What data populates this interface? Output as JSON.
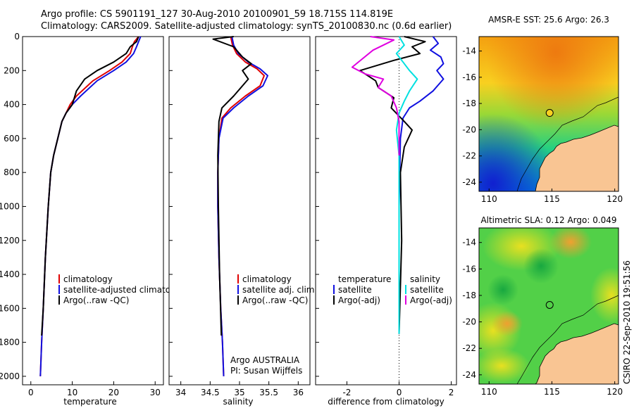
{
  "header": {
    "line1": "Argo profile: CS 5901191_127 30-Aug-2010 20100901_59 18.715S 114.819E",
    "line2": "Climatology: CARS2009. Satellite-adjusted climatology: synTS_20100830.nc (0.6d earlier)"
  },
  "colors": {
    "climatology": "#e00000",
    "satellite": "#1010e0",
    "argo": "#000000",
    "salinity_sat": "#00e0e0",
    "salinity_argo": "#e000e0",
    "land": "#f9c593"
  },
  "chart_data": [
    {
      "type": "line",
      "id": "temperature",
      "xlabel": "temperature",
      "xlim": [
        -2,
        32
      ],
      "ylim": [
        0,
        2050
      ],
      "xticks": [
        0,
        10,
        20,
        30
      ],
      "yticks": [
        0,
        200,
        400,
        600,
        800,
        1000,
        1200,
        1400,
        1600,
        1800,
        2000
      ],
      "y_inverted": true,
      "series": [
        {
          "name": "climatology",
          "color_key": "climatology",
          "x": [
            26,
            25,
            24.5,
            24,
            22,
            19,
            15,
            11,
            9.5,
            8.5,
            7.5,
            6.5,
            5.5,
            4.8,
            4.2,
            3.5,
            3,
            2.6,
            2.3
          ],
          "y": [
            0,
            30,
            60,
            100,
            150,
            200,
            260,
            350,
            400,
            450,
            500,
            600,
            700,
            800,
            1000,
            1300,
            1600,
            1800,
            2000
          ]
        },
        {
          "name": "satellite-adjusted climatology",
          "color_key": "satellite",
          "x": [
            26.5,
            26,
            25.5,
            24.8,
            23,
            20,
            16,
            12,
            10,
            8.5,
            7.5,
            6.5,
            5.5,
            4.8,
            4.2,
            3.5,
            3,
            2.6,
            2.3
          ],
          "y": [
            0,
            30,
            60,
            100,
            150,
            200,
            260,
            350,
            400,
            450,
            500,
            600,
            700,
            800,
            1000,
            1300,
            1600,
            1800,
            2000
          ]
        },
        {
          "name": "Argo(..raw -QC)",
          "color_key": "argo",
          "x": [
            26,
            25.5,
            24,
            23,
            20,
            16,
            13,
            11,
            10,
            8.5,
            7.5,
            6.5,
            5.5,
            4.8,
            4.2,
            3.5,
            3,
            2.6
          ],
          "y": [
            0,
            30,
            60,
            100,
            150,
            200,
            250,
            320,
            400,
            450,
            500,
            600,
            700,
            800,
            1000,
            1300,
            1600,
            1760
          ]
        }
      ],
      "legend": [
        "climatology",
        "satellite-adjusted climatology",
        "Argo(..raw -QC)"
      ]
    },
    {
      "type": "line",
      "id": "salinity",
      "xlabel": "salinity",
      "xlim": [
        33.8,
        36.2
      ],
      "ylim": [
        0,
        2050
      ],
      "xticks": [
        34,
        34.5,
        35,
        35.5,
        36
      ],
      "y_inverted": true,
      "series": [
        {
          "name": "climatology",
          "color_key": "climatology",
          "x": [
            34.85,
            34.88,
            34.95,
            35.1,
            35.3,
            35.42,
            35.35,
            35.1,
            34.85,
            34.7,
            34.65,
            34.63,
            34.63,
            34.65,
            34.68,
            34.71,
            34.73
          ],
          "y": [
            0,
            50,
            100,
            150,
            190,
            230,
            290,
            350,
            420,
            480,
            600,
            800,
            1000,
            1300,
            1600,
            1800,
            2000
          ]
        },
        {
          "name": "satellite adj. clim.",
          "color_key": "satellite",
          "x": [
            34.87,
            34.9,
            34.98,
            35.15,
            35.35,
            35.48,
            35.4,
            35.15,
            34.9,
            34.72,
            34.65,
            34.63,
            34.63,
            34.65,
            34.68,
            34.71,
            34.73
          ],
          "y": [
            0,
            50,
            100,
            150,
            190,
            230,
            290,
            350,
            420,
            480,
            600,
            800,
            1000,
            1300,
            1600,
            1800,
            2000
          ]
        },
        {
          "name": "Argo(..raw -QC)",
          "color_key": "argo",
          "x": [
            34.9,
            34.55,
            34.9,
            35.05,
            35.2,
            35.05,
            35.15,
            34.9,
            34.7,
            34.65,
            34.63,
            34.64,
            34.66,
            34.69
          ],
          "y": [
            0,
            15,
            60,
            120,
            160,
            200,
            250,
            350,
            420,
            500,
            700,
            1000,
            1400,
            1760
          ]
        }
      ],
      "legend": [
        "climatology",
        "satellite adj. clim.",
        "Argo(..raw -QC)"
      ],
      "annotation": [
        "Argo AUSTRALIA",
        "PI: Susan Wijffels"
      ]
    },
    {
      "type": "line",
      "id": "difference",
      "xlabel": "difference from climatology",
      "xlim": [
        -3.2,
        2.2
      ],
      "ylim": [
        0,
        2050
      ],
      "xticks": [
        -2,
        0,
        2
      ],
      "y_inverted": true,
      "zero_line": "dotted",
      "series": [
        {
          "name": "temperature satellite",
          "color_key": "satellite",
          "x": [
            1.3,
            1.5,
            1.2,
            1.6,
            1.7,
            1.45,
            1.7,
            1.3,
            0.8,
            0.4,
            0.15,
            0.05,
            0,
            0,
            0
          ],
          "y": [
            0,
            40,
            80,
            120,
            160,
            200,
            250,
            320,
            380,
            420,
            480,
            600,
            1000,
            1500,
            1750
          ]
        },
        {
          "name": "temperature Argo(-adj)",
          "color_key": "argo",
          "x": [
            0.2,
            1,
            0.5,
            0.8,
            -0.2,
            -1.5,
            -0.9,
            -0.8,
            -0.2,
            -0.3,
            0.2,
            0.5,
            0.2,
            0.05,
            0.1,
            0
          ],
          "y": [
            0,
            30,
            60,
            100,
            140,
            200,
            260,
            300,
            360,
            420,
            500,
            550,
            650,
            800,
            1200,
            1750
          ]
        },
        {
          "name": "salinity satellite",
          "color_key": "salinity_sat",
          "x": [
            0,
            0.2,
            -0.1,
            0.15,
            0.4,
            0.7,
            0.4,
            0.2,
            0,
            -0.1,
            0,
            0,
            0
          ],
          "y": [
            0,
            50,
            100,
            150,
            200,
            250,
            320,
            380,
            450,
            550,
            700,
            1200,
            1750
          ]
        },
        {
          "name": "salinity Argo(-adj)",
          "color_key": "salinity_argo",
          "x": [
            -1.1,
            -0.2,
            -1,
            -1.8,
            -1.3,
            -0.6,
            -0.8,
            -0.3,
            -0.1,
            0,
            0
          ],
          "y": [
            0,
            20,
            80,
            180,
            220,
            250,
            300,
            350,
            420,
            500,
            700
          ]
        }
      ],
      "legend": {
        "temperature": "temperature",
        "salinity": "salinity",
        "satellite": "satellite",
        "argo": "Argo(-adj)"
      }
    },
    {
      "type": "heatmap",
      "id": "sst_map",
      "title": "AMSR-E SST: 25.6 Argo: 26.3",
      "xticks": [
        110,
        115,
        120
      ],
      "yticks": [
        -14,
        -16,
        -18,
        -20,
        -22,
        -24
      ],
      "xlim": [
        109.2,
        120.3
      ],
      "ylim": [
        -24.7,
        -12.9
      ],
      "argo_position": {
        "lon": 114.82,
        "lat": -18.72
      }
    },
    {
      "type": "heatmap",
      "id": "sla_map",
      "title": "Altimetric SLA: 0.12 Argo: 0.049",
      "xticks": [
        110,
        115,
        120
      ],
      "yticks": [
        -14,
        -16,
        -18,
        -20,
        -22,
        -24
      ],
      "xlim": [
        109.2,
        120.3
      ],
      "ylim": [
        -24.7,
        -12.9
      ],
      "argo_position": {
        "lon": 114.82,
        "lat": -18.72
      }
    }
  ],
  "footer": {
    "stamp": "CSIRO 22-Sep-2010 19:51:56"
  }
}
